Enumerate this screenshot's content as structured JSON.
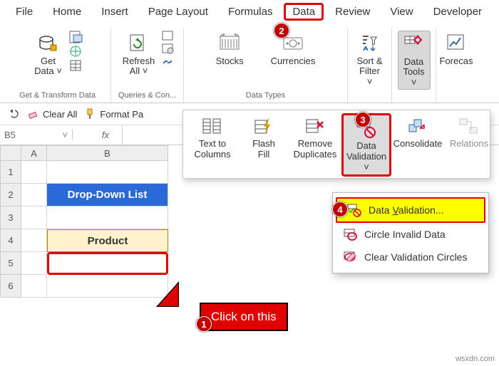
{
  "menu": {
    "file": "File",
    "home": "Home",
    "insert": "Insert",
    "pagelayout": "Page Layout",
    "formulas": "Formulas",
    "data": "Data",
    "review": "Review",
    "view": "View",
    "developer": "Developer"
  },
  "ribbon": {
    "getdata": "Get\nData ˅",
    "refresh": "Refresh\nAll ˅",
    "g1": "Get & Transform Data",
    "g2": "Queries & Con...",
    "stocks": "Stocks",
    "currencies": "Currencies",
    "g3": "Data Types",
    "sortfilter": "Sort &\nFilter ˅",
    "datatools": "Data\nTools ˅",
    "forecast": "Forecas"
  },
  "qat": {
    "clear": "Clear All",
    "format": "Format Pa"
  },
  "namebox": "B5",
  "fx": "fx",
  "cols": {
    "A": "A",
    "B": "B"
  },
  "rowsN": [
    "1",
    "2",
    "3",
    "4",
    "5",
    "6"
  ],
  "cells": {
    "title": "Drop-Down List",
    "product": "Product"
  },
  "dd": {
    "t2c": "Text to\nColumns",
    "ff": "Flash\nFill",
    "rd": "Remove\nDuplicates",
    "dv": "Data\nValidation ˅",
    "cons": "Consolidate",
    "rel": "Relations"
  },
  "menuitems": {
    "dv": "Data Validation...",
    "cid": "Circle Invalid Data",
    "cvc": "Clear Validation Circles"
  },
  "callout": "Click on this",
  "badges": {
    "b1": "1",
    "b2": "2",
    "b3": "3",
    "b4": "4"
  },
  "watermark": "wsxdn.com",
  "colors": {
    "red": "#e00000",
    "badge": "#c00000",
    "blue": "#2b6ad6",
    "yellow": "#ffff00",
    "cream": "#fff2cc"
  }
}
